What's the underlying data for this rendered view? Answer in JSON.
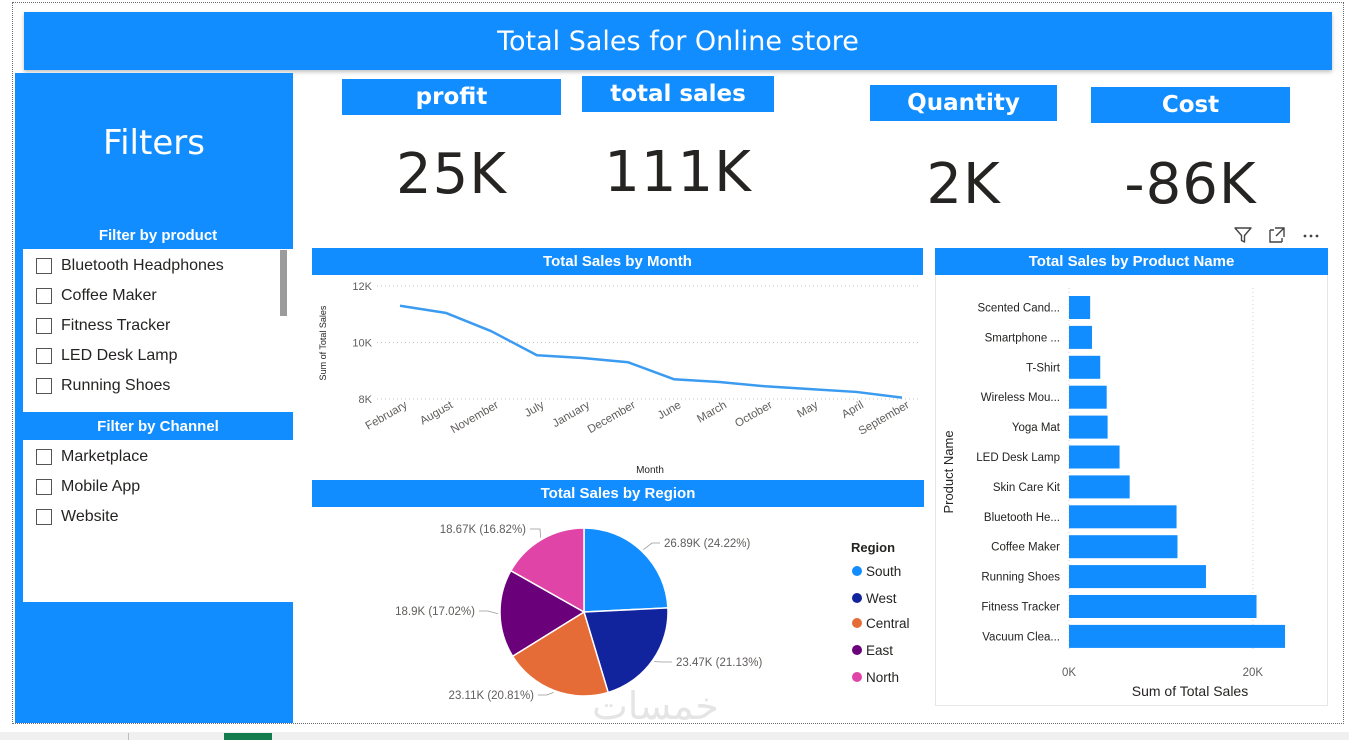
{
  "title": "Total Sales for Online store",
  "sidebar": {
    "title": "Filters",
    "product_slicer": {
      "header": "Filter by product",
      "items": [
        "Bluetooth Headphones",
        "Coffee Maker",
        "Fitness Tracker",
        "LED Desk Lamp",
        "Running Shoes"
      ]
    },
    "channel_slicer": {
      "header": "Filter by Channel",
      "items": [
        "Marketplace",
        "Mobile App",
        "Website"
      ]
    }
  },
  "kpis": [
    {
      "label": "profit",
      "value": "25K"
    },
    {
      "label": "total sales",
      "value": "111K"
    },
    {
      "label": "Quantity",
      "value": "2K"
    },
    {
      "label": "Cost",
      "value": "-86K"
    }
  ],
  "visual_icons": [
    "filter-icon",
    "focus-mode-icon",
    "more-options-icon"
  ],
  "watermark": "خمسات",
  "colors": {
    "accent": "#118DFF",
    "line": "#3B9BF0",
    "south": "#118DFF",
    "west": "#12239E",
    "central": "#E66C37",
    "east": "#6B007B",
    "north": "#E044A7"
  },
  "chart_data": [
    {
      "type": "line",
      "title": "Total Sales by Month",
      "xlabel": "Month",
      "ylabel": "Sum of Total Sales",
      "yticks": [
        "12K",
        "10K",
        "8K"
      ],
      "ylim": [
        8000,
        12000
      ],
      "categories": [
        "February",
        "August",
        "November",
        "July",
        "January",
        "December",
        "June",
        "March",
        "October",
        "May",
        "April",
        "September"
      ],
      "values": [
        11300,
        11050,
        10400,
        9550,
        9450,
        9300,
        8700,
        8600,
        8450,
        8350,
        8250,
        8050
      ]
    },
    {
      "type": "pie",
      "title": "Total Sales by Region",
      "legend_title": "Region",
      "slices": [
        {
          "name": "South",
          "value": 26.89,
          "label": "26.89K (24.22%)"
        },
        {
          "name": "West",
          "value": 23.47,
          "label": "23.47K (21.13%)"
        },
        {
          "name": "Central",
          "value": 23.11,
          "label": "23.11K (20.81%)"
        },
        {
          "name": "East",
          "value": 18.9,
          "label": "18.9K (17.02%)"
        },
        {
          "name": "North",
          "value": 18.67,
          "label": "18.67K (16.82%)"
        }
      ]
    },
    {
      "type": "bar",
      "orientation": "horizontal",
      "title": "Total Sales by Product Name",
      "xlabel": "Sum of Total Sales",
      "ylabel": "Product Name",
      "xticks": [
        "0K",
        "20K"
      ],
      "xlim": [
        0,
        26000
      ],
      "categories": [
        "Scented Cand...",
        "Smartphone ...",
        "T-Shirt",
        "Wireless Mou...",
        "Yoga Mat",
        "LED Desk Lamp",
        "Skin Care Kit",
        "Bluetooth He...",
        "Coffee Maker",
        "Running Shoes",
        "Fitness Tracker",
        "Vacuum Clea..."
      ],
      "values": [
        2300,
        2500,
        3400,
        4100,
        4200,
        5500,
        6600,
        11700,
        11800,
        14900,
        20400,
        23500
      ]
    }
  ]
}
